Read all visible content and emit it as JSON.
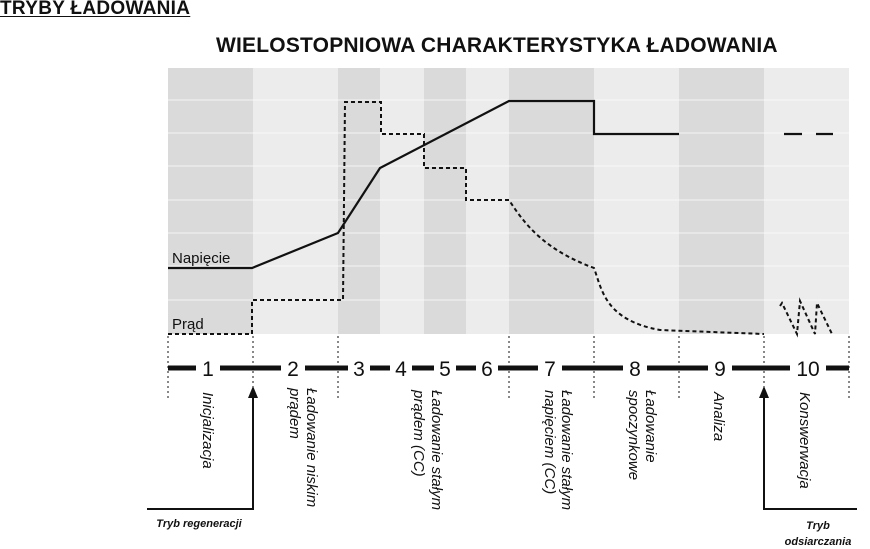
{
  "header": {
    "title": "TRYBY ŁADOWANIA"
  },
  "chart": {
    "title": "WIELOSTOPNIOWA CHARAKTERYSTYKA ŁADOWANIA",
    "labels": {
      "voltage": "Napięcie",
      "current": "Prąd"
    }
  },
  "stages": [
    {
      "number": "1",
      "lines": [
        "Inicjalizacja"
      ]
    },
    {
      "number": "2",
      "lines": [
        "Ładowanie niskim",
        "prądem"
      ]
    },
    {
      "number": "3",
      "lines": []
    },
    {
      "number": "4",
      "lines": [
        "Ładowanie stałym",
        "prądem (CC)"
      ]
    },
    {
      "number": "5",
      "lines": []
    },
    {
      "number": "6",
      "lines": []
    },
    {
      "number": "7",
      "lines": [
        "Ładowanie stałym",
        "napięciem (CC)"
      ]
    },
    {
      "number": "8",
      "lines": [
        "Ładowanie",
        "spoczynkowe"
      ]
    },
    {
      "number": "9",
      "lines": [
        "Analiza"
      ]
    },
    {
      "number": "10",
      "lines": [
        "Konswerwacja"
      ]
    }
  ],
  "modes": {
    "regeneration": {
      "lines": [
        "Tryb regeneracji"
      ]
    },
    "desulfation": {
      "lines": [
        "Tryb",
        "odsiarczania"
      ]
    }
  },
  "colors": {
    "band_dark": "#dadada",
    "band_light": "#ececec",
    "line": "#111111"
  }
}
